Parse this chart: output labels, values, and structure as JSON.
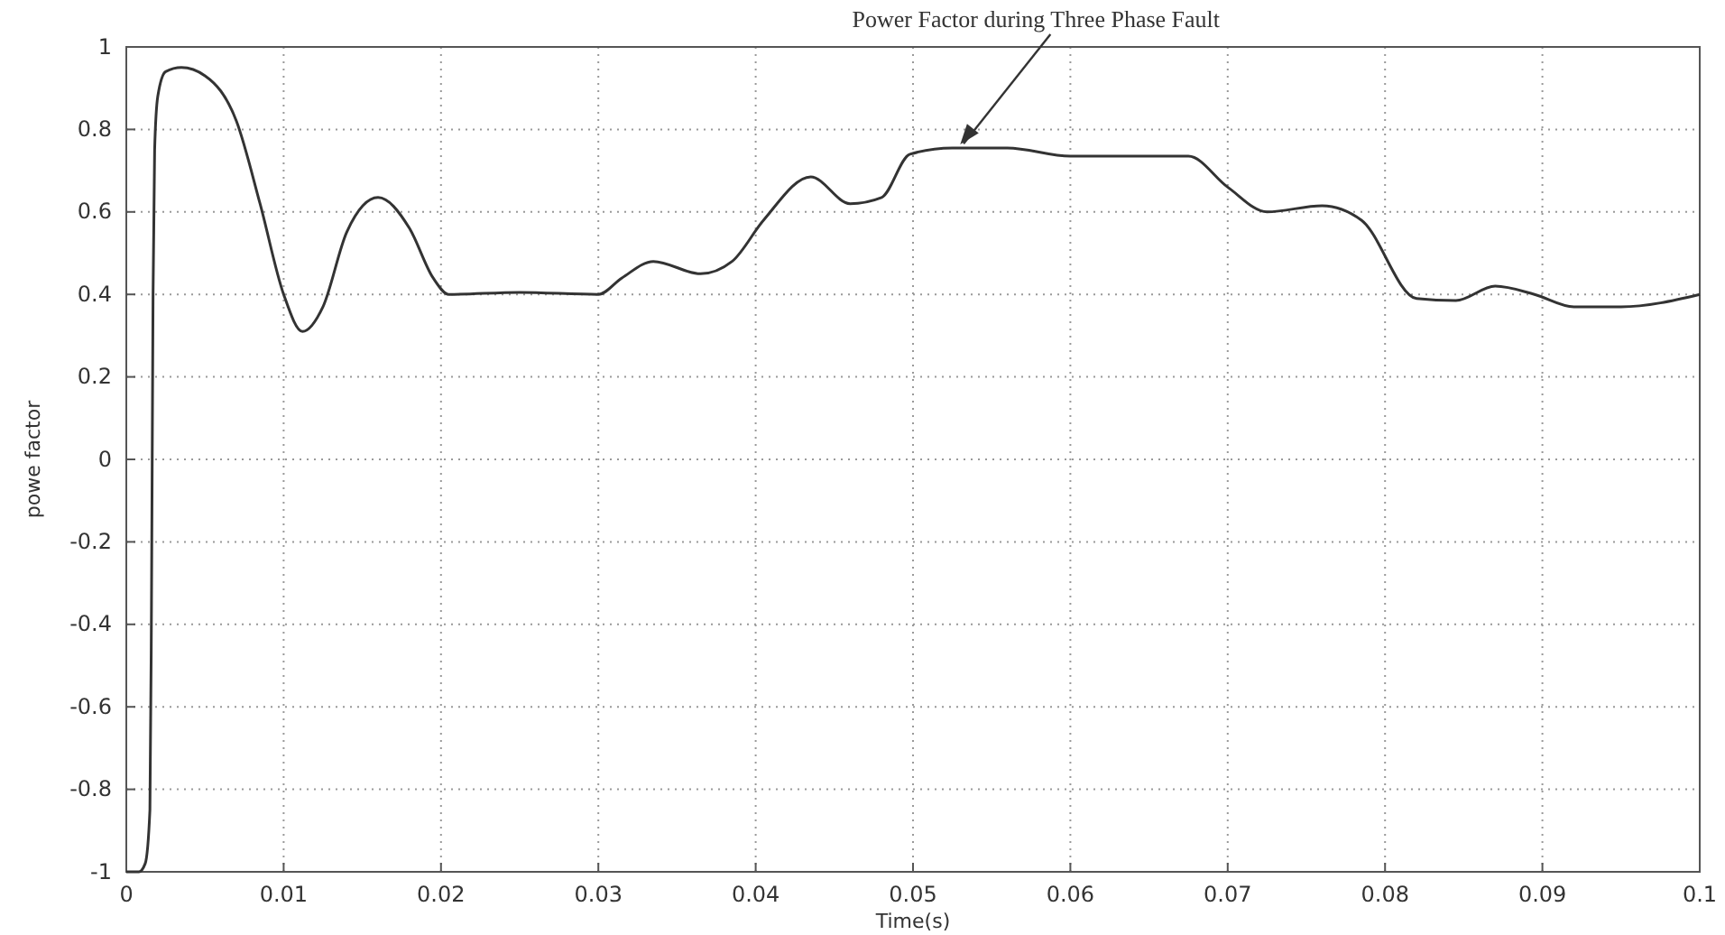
{
  "chart_data": {
    "type": "line",
    "xlabel": "Time(s)",
    "ylabel": "powe factor",
    "annotations": [
      {
        "text": "Power Factor during Three Phase Fault",
        "x": 0.053,
        "y": 0.755
      }
    ],
    "x": [
      0,
      0.0008,
      0.0012,
      0.0015,
      0.0016,
      0.0017,
      0.0018,
      0.002,
      0.0025,
      0.0035,
      0.005,
      0.007,
      0.0085,
      0.01,
      0.0112,
      0.0125,
      0.014,
      0.016,
      0.018,
      0.0195,
      0.0205,
      0.025,
      0.03,
      0.0315,
      0.0335,
      0.0365,
      0.0385,
      0.0405,
      0.0435,
      0.046,
      0.048,
      0.0498,
      0.0525,
      0.056,
      0.06,
      0.0675,
      0.07,
      0.0725,
      0.076,
      0.0785,
      0.082,
      0.0845,
      0.087,
      0.0895,
      0.092,
      0.095,
      0.1
    ],
    "series": [
      {
        "color": "#333333",
        "values": [
          -1,
          -1,
          -0.98,
          -0.85,
          -0.35,
          0.4,
          0.75,
          0.88,
          0.94,
          0.95,
          0.93,
          0.82,
          0.62,
          0.4,
          0.31,
          0.37,
          0.55,
          0.635,
          0.56,
          0.44,
          0.4,
          0.405,
          0.4,
          0.44,
          0.48,
          0.45,
          0.48,
          0.58,
          0.685,
          0.62,
          0.635,
          0.74,
          0.755,
          0.755,
          0.735,
          0.735,
          0.66,
          0.6,
          0.615,
          0.58,
          0.39,
          0.385,
          0.42,
          0.4,
          0.37,
          0.37,
          0.4
        ]
      }
    ],
    "xlim": [
      0,
      0.1
    ],
    "xticks": [
      0,
      0.01,
      0.02,
      0.03,
      0.04,
      0.05,
      0.06,
      0.07,
      0.08,
      0.09,
      0.1
    ],
    "ylim": [
      -1,
      1
    ],
    "yticks": [
      -1,
      -0.8,
      -0.6,
      -0.4,
      -0.2,
      0,
      0.2,
      0.4,
      0.6,
      0.8,
      1
    ],
    "grid": true,
    "marker": "none",
    "line_style": "solid"
  }
}
